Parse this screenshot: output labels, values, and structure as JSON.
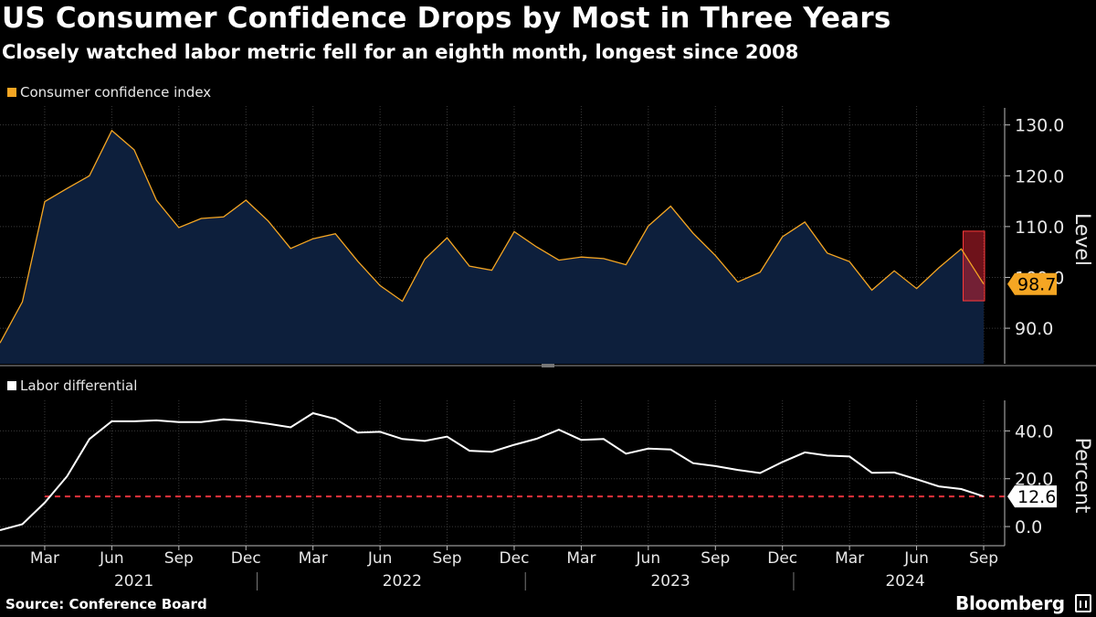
{
  "header": {
    "title": "US Consumer Confidence Drops by Most in Three Years",
    "subtitle": "Closely watched labor metric fell for an eighth month, longest since 2008"
  },
  "footer": {
    "source": "Source: Conference Board",
    "brand": "Bloomberg"
  },
  "colors": {
    "background": "#000000",
    "confidence_line": "#f5a623",
    "confidence_fill": "#0d1f3c",
    "labor_line": "#ffffff",
    "reference_line": "#e8323c",
    "highlight": "#c8202f"
  },
  "chart_data": [
    {
      "type": "area",
      "title": "Consumer confidence index",
      "legend": "Consumer confidence index",
      "ylabel": "Level",
      "ylim": [
        83,
        133
      ],
      "yticks": [
        "90.0",
        "100.0",
        "110.0",
        "120.0",
        "130.0"
      ],
      "ytick_values": [
        90,
        100,
        110,
        120,
        130
      ],
      "x": [
        "2021-01",
        "2021-02",
        "2021-03",
        "2021-04",
        "2021-05",
        "2021-06",
        "2021-07",
        "2021-08",
        "2021-09",
        "2021-10",
        "2021-11",
        "2021-12",
        "2022-01",
        "2022-02",
        "2022-03",
        "2022-04",
        "2022-05",
        "2022-06",
        "2022-07",
        "2022-08",
        "2022-09",
        "2022-10",
        "2022-11",
        "2022-12",
        "2023-01",
        "2023-02",
        "2023-03",
        "2023-04",
        "2023-05",
        "2023-06",
        "2023-07",
        "2023-08",
        "2023-09",
        "2023-10",
        "2023-11",
        "2023-12",
        "2024-01",
        "2024-02",
        "2024-03",
        "2024-04",
        "2024-05",
        "2024-06",
        "2024-07",
        "2024-08",
        "2024-09"
      ],
      "values": [
        87.1,
        95.2,
        114.9,
        117.5,
        120.0,
        128.9,
        125.1,
        115.2,
        109.8,
        111.6,
        111.9,
        115.2,
        111.1,
        105.7,
        107.6,
        108.6,
        103.2,
        98.4,
        95.3,
        103.6,
        107.8,
        102.2,
        101.4,
        109.0,
        106.0,
        103.4,
        104.0,
        103.7,
        102.5,
        110.1,
        114.0,
        108.7,
        104.3,
        99.1,
        101.0,
        108.0,
        110.9,
        104.8,
        103.1,
        97.5,
        101.3,
        97.8,
        101.9,
        105.6,
        98.7
      ],
      "latest_label": "98.7",
      "highlight_range": [
        95.4,
        109.1
      ],
      "grid": true
    },
    {
      "type": "line",
      "title": "Labor differential",
      "legend": "Labor differential",
      "ylabel": "Percent",
      "ylim": [
        -8,
        52
      ],
      "yticks": [
        "0.0",
        "20.0",
        "40.0"
      ],
      "ytick_values": [
        0,
        20,
        40
      ],
      "x": [
        "2021-01",
        "2021-02",
        "2021-03",
        "2021-04",
        "2021-05",
        "2021-06",
        "2021-07",
        "2021-08",
        "2021-09",
        "2021-10",
        "2021-11",
        "2021-12",
        "2022-01",
        "2022-02",
        "2022-03",
        "2022-04",
        "2022-05",
        "2022-06",
        "2022-07",
        "2022-08",
        "2022-09",
        "2022-10",
        "2022-11",
        "2022-12",
        "2023-01",
        "2023-02",
        "2023-03",
        "2023-04",
        "2023-05",
        "2023-06",
        "2023-07",
        "2023-08",
        "2023-09",
        "2023-10",
        "2023-11",
        "2023-12",
        "2024-01",
        "2024-02",
        "2024-03",
        "2024-04",
        "2024-05",
        "2024-06",
        "2024-07",
        "2024-08",
        "2024-09"
      ],
      "values": [
        -1.5,
        1.0,
        10.0,
        21.0,
        36.6,
        44.0,
        44.0,
        44.4,
        43.7,
        43.7,
        44.8,
        44.2,
        43.0,
        41.5,
        47.4,
        45.0,
        39.3,
        39.6,
        36.6,
        35.8,
        37.6,
        31.7,
        31.3,
        34.2,
        36.7,
        40.5,
        36.2,
        36.6,
        30.5,
        32.6,
        32.2,
        26.5,
        25.3,
        23.7,
        22.4,
        27.0,
        31.0,
        29.7,
        29.3,
        22.5,
        22.6,
        19.8,
        16.8,
        15.7,
        12.6
      ],
      "latest_label": "12.6",
      "reference_value": 12.6,
      "grid": true
    }
  ],
  "xaxis": {
    "month_ticks": [
      {
        "label": "Mar",
        "date": "2021-03"
      },
      {
        "label": "Jun",
        "date": "2021-06"
      },
      {
        "label": "Sep",
        "date": "2021-09"
      },
      {
        "label": "Dec",
        "date": "2021-12"
      },
      {
        "label": "Mar",
        "date": "2022-03"
      },
      {
        "label": "Jun",
        "date": "2022-06"
      },
      {
        "label": "Sep",
        "date": "2022-09"
      },
      {
        "label": "Dec",
        "date": "2022-12"
      },
      {
        "label": "Mar",
        "date": "2023-03"
      },
      {
        "label": "Jun",
        "date": "2023-06"
      },
      {
        "label": "Sep",
        "date": "2023-09"
      },
      {
        "label": "Dec",
        "date": "2023-12"
      },
      {
        "label": "Mar",
        "date": "2024-03"
      },
      {
        "label": "Jun",
        "date": "2024-06"
      },
      {
        "label": "Sep",
        "date": "2024-09"
      }
    ],
    "years": [
      "2021",
      "2022",
      "2023",
      "2024"
    ]
  }
}
